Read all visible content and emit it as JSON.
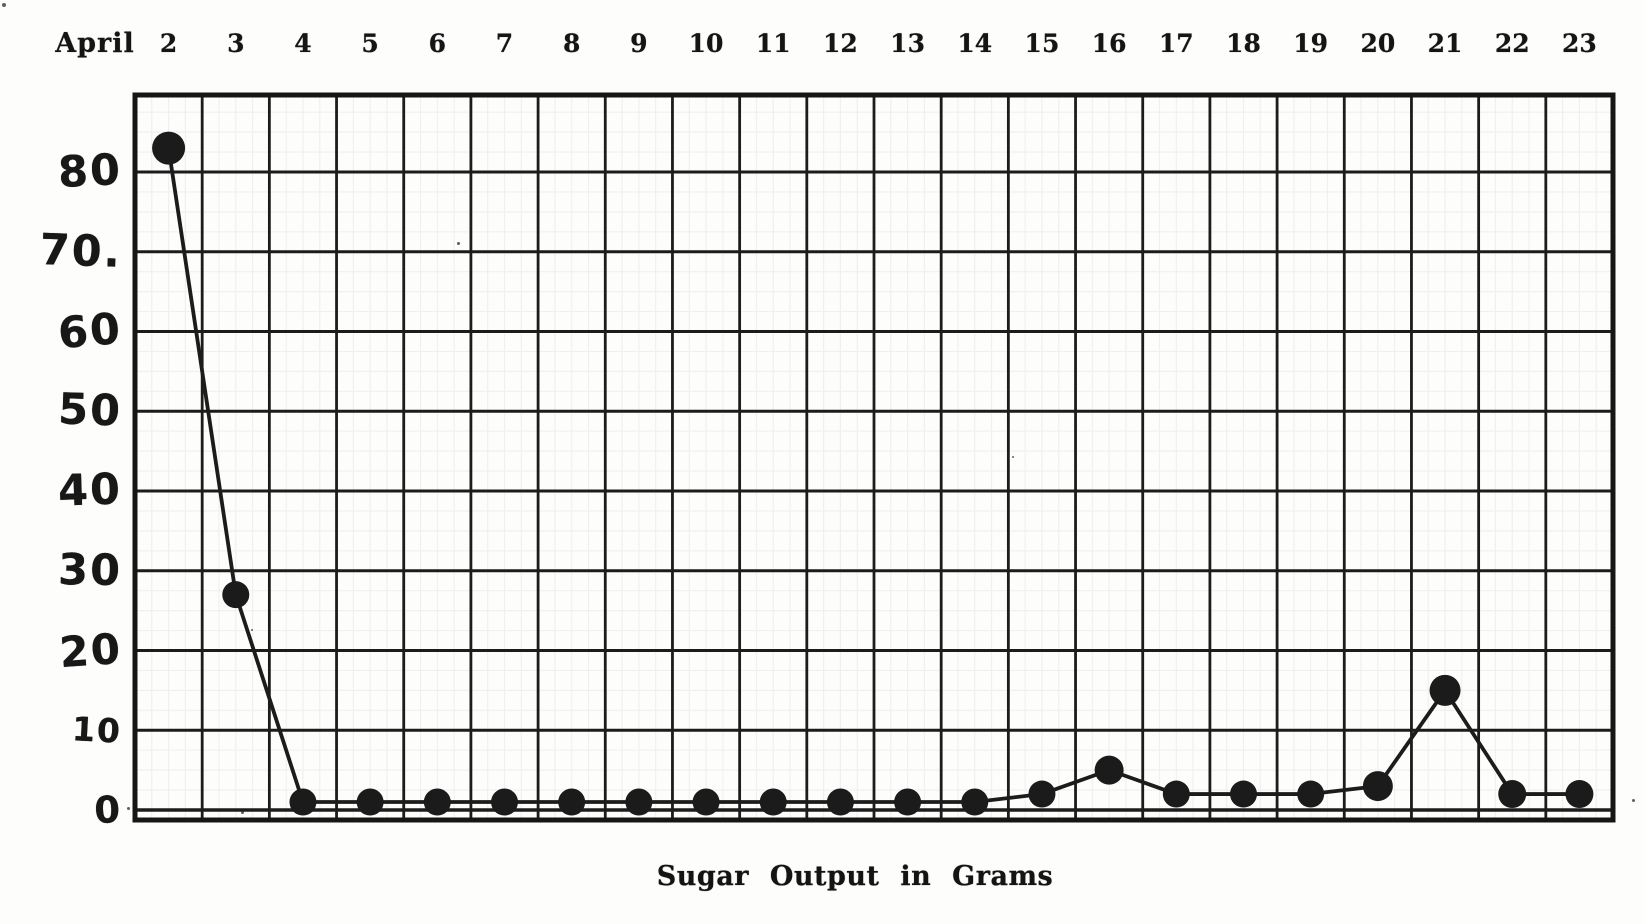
{
  "page": {
    "paper_color": "#fdfdfc",
    "ink_color": "#1c1c1c"
  },
  "x_axis": {
    "month_label": "April",
    "dates": [
      "2",
      "3",
      "4",
      "5",
      "6",
      "7",
      "8",
      "9",
      "10",
      "11",
      "12",
      "13",
      "14",
      "15",
      "16",
      "17",
      "18",
      "19",
      "20",
      "21",
      "22",
      "23"
    ]
  },
  "y_axis": {
    "labels": [
      "80",
      "70.",
      "60",
      "50",
      "40",
      "30",
      "20",
      "10",
      "0"
    ]
  },
  "caption": {
    "text": "Sugar Output in Grams"
  },
  "chart_data": {
    "type": "line",
    "title": "Sugar Output in Grams",
    "xlabel": "April (date)",
    "ylabel": "Sugar output in grams",
    "categories": [
      "April 2",
      "April 3",
      "April 4",
      "April 5",
      "April 6",
      "April 7",
      "April 8",
      "April 9",
      "April 10",
      "April 11",
      "April 12",
      "April 13",
      "April 14",
      "April 15",
      "April 16",
      "April 17",
      "April 18",
      "April 19",
      "April 20",
      "April 21",
      "April 22",
      "April 23"
    ],
    "values": [
      83,
      27,
      1,
      1,
      1,
      1,
      1,
      1,
      1,
      1,
      1,
      1,
      1,
      2,
      5,
      2,
      2,
      2,
      3,
      15,
      2,
      2
    ],
    "ylim": [
      0,
      90
    ],
    "ytick_step": 10,
    "yticks_labeled": [
      0,
      10,
      20,
      30,
      40,
      50,
      60,
      70,
      80
    ],
    "grid": true,
    "legend_position": "none",
    "marker": "filled-circle",
    "line_color": "#1c1c1c"
  }
}
